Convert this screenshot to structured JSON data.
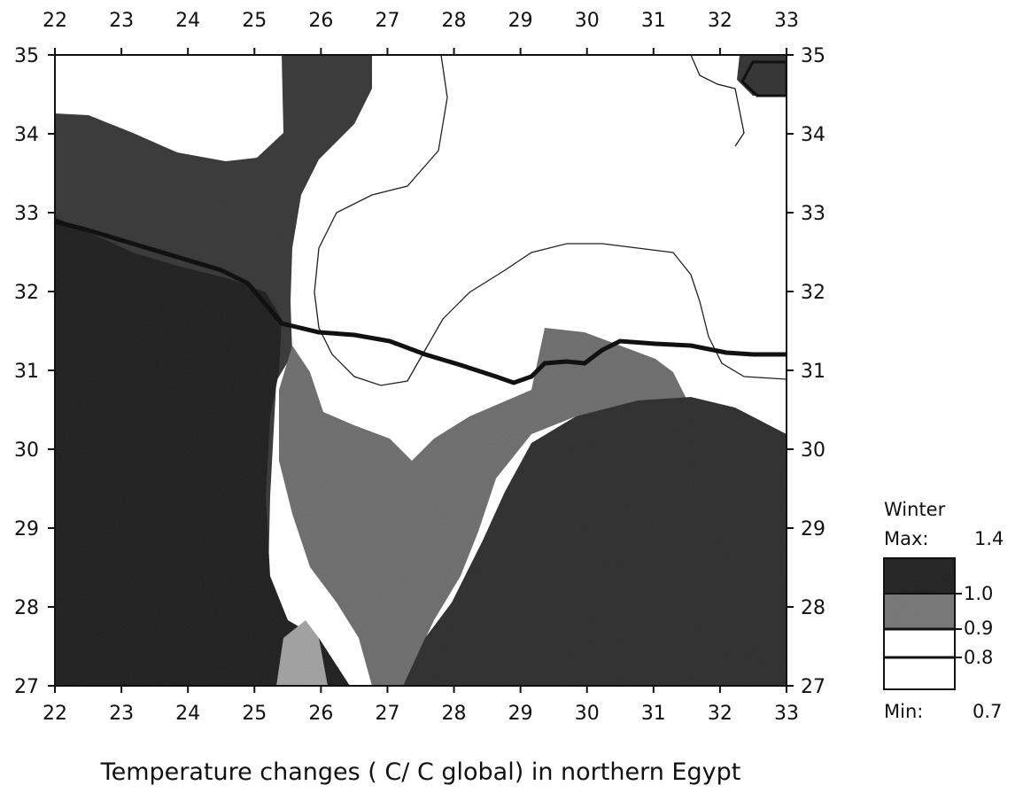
{
  "figure": {
    "caption": "Temperature changes ( C/ C global) in northern Egypt"
  },
  "axes": {
    "x_ticks": [
      "22",
      "23",
      "24",
      "25",
      "26",
      "27",
      "28",
      "29",
      "30",
      "31",
      "32",
      "33"
    ],
    "y_ticks": [
      "27",
      "28",
      "29",
      "30",
      "31",
      "32",
      "33",
      "34",
      "35"
    ],
    "x_range": [
      22,
      33
    ],
    "y_range": [
      27,
      35
    ]
  },
  "legend": {
    "title": "Winter",
    "max_label": "Max:",
    "max_value": "1.4",
    "min_label": "Min:",
    "min_value": "0.7",
    "breaks": [
      "1.0",
      "0.9",
      "0.8"
    ],
    "classes": [
      {
        "range": "1.0-1.4",
        "color": "#2a2a2a"
      },
      {
        "range": "0.9-1.0",
        "color": "#7d7d7d"
      },
      {
        "range": "0.8-0.9",
        "color": "#ffffff"
      },
      {
        "range": "0.7-0.8",
        "color": "#ffffff"
      }
    ]
  },
  "colors": {
    "darkest": "#262626",
    "dark": "#3e3e3e",
    "medium": "#6f6f6f",
    "light": "#a8a8a8",
    "white": "#ffffff"
  }
}
